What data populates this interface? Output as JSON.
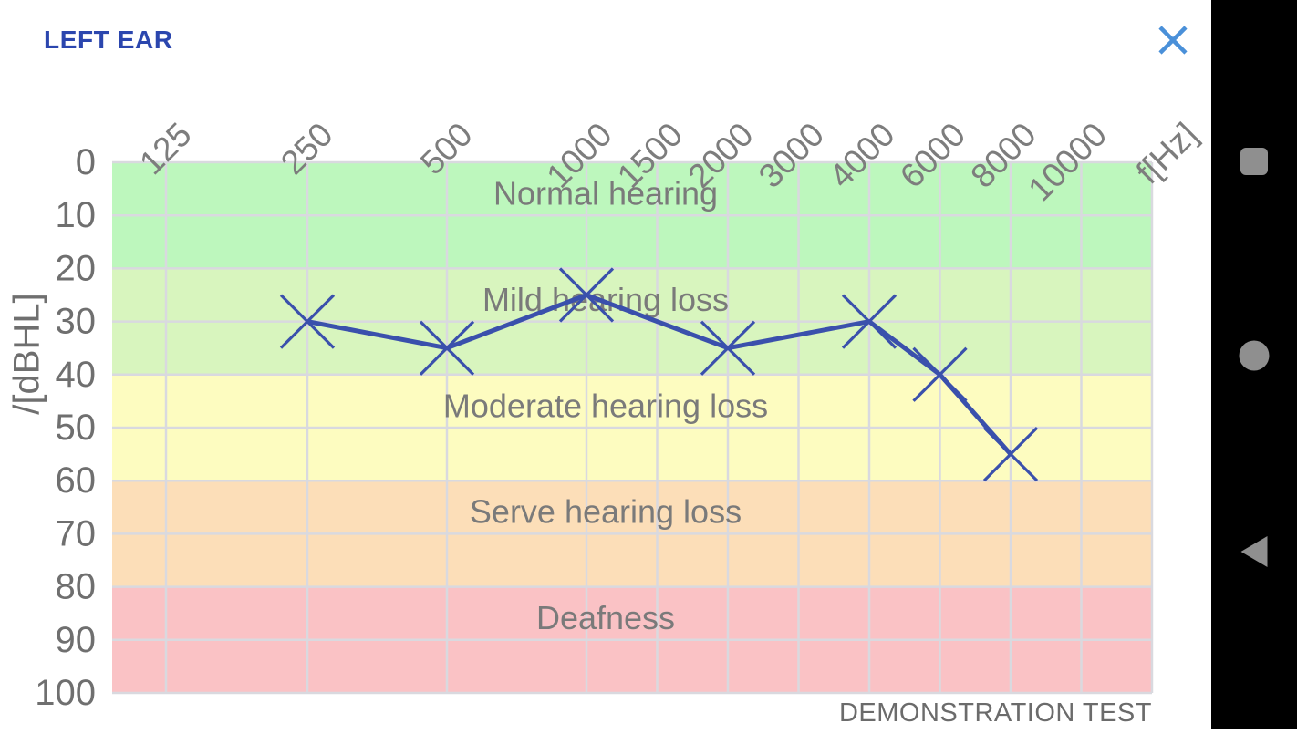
{
  "header": {
    "title": "LEFT EAR"
  },
  "chart_data": {
    "type": "line",
    "title": "",
    "ylabel": "/[dBHL]",
    "xlabel_unit": "f[Hz]",
    "x_ticks": [
      "125",
      "250",
      "500",
      "1000",
      "1500",
      "2000",
      "3000",
      "4000",
      "6000",
      "8000",
      "10000",
      "f[Hz]"
    ],
    "y_ticks": [
      "0",
      "10",
      "20",
      "30",
      "40",
      "50",
      "60",
      "70",
      "80",
      "90",
      "100"
    ],
    "ylim": [
      0,
      100
    ],
    "grid": true,
    "bands": [
      {
        "label": "Normal hearing",
        "from": 0,
        "to": 20,
        "color": "#bdf7bd"
      },
      {
        "label": "Mild hearing loss",
        "from": 20,
        "to": 40,
        "color": "#d8f5be"
      },
      {
        "label": "Moderate hearing loss",
        "from": 40,
        "to": 60,
        "color": "#fdfcc0"
      },
      {
        "label": "Serve hearing loss",
        "from": 60,
        "to": 80,
        "color": "#fcdeb8"
      },
      {
        "label": "Deafness",
        "from": 80,
        "to": 100,
        "color": "#fac2c5"
      }
    ],
    "series": [
      {
        "name": "left-ear-thresholds",
        "marker": "x",
        "color": "#3a50ac",
        "points": [
          {
            "freq": "250",
            "db": 30
          },
          {
            "freq": "500",
            "db": 35
          },
          {
            "freq": "1000",
            "db": 25
          },
          {
            "freq": "2000",
            "db": 35
          },
          {
            "freq": "4000",
            "db": 30
          },
          {
            "freq": "6000",
            "db": 40
          },
          {
            "freq": "8000",
            "db": 55
          }
        ]
      }
    ],
    "footer_note": "DEMONSTRATION TEST"
  },
  "nav_bar": {
    "buttons": [
      {
        "name": "recents",
        "icon": "recents-square-icon"
      },
      {
        "name": "home",
        "icon": "home-circle-icon"
      },
      {
        "name": "back",
        "icon": "back-triangle-icon"
      }
    ]
  },
  "colors": {
    "title_blue": "#2b46ae",
    "close_blue": "#4a90d9",
    "line_blue": "#3a50ac",
    "tick_text": "#6f6f6f",
    "band_text": "#7a7a7a",
    "footer_text": "#6b6b6b",
    "grid": "#d9d9df",
    "nav_bg": "#000000",
    "nav_icon": "#8f8f8f"
  }
}
